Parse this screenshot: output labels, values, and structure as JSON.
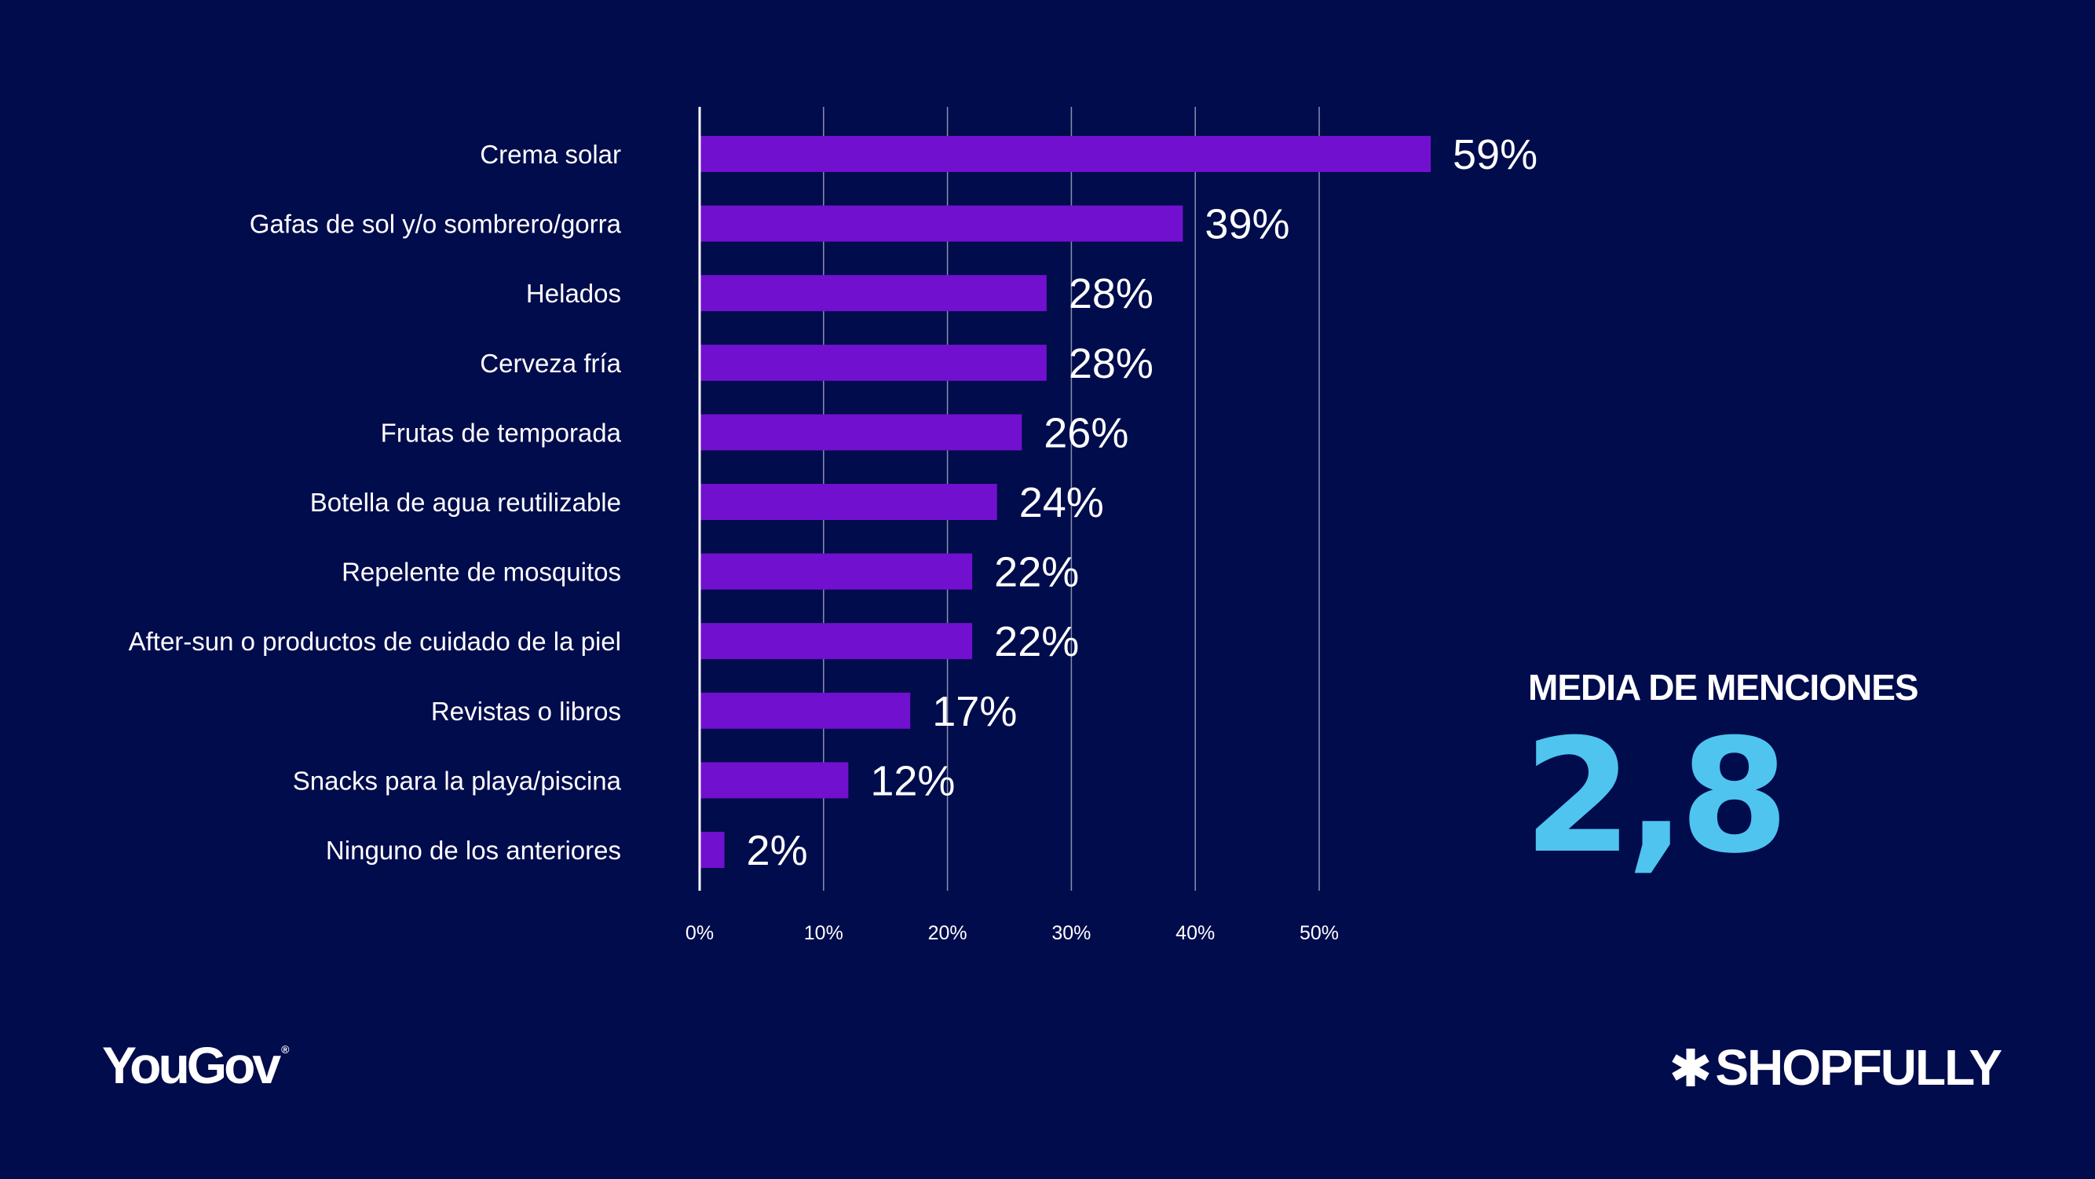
{
  "chart_data": {
    "type": "bar",
    "orientation": "horizontal",
    "categories": [
      "Crema solar",
      "Gafas de sol y/o sombrero/gorra",
      "Helados",
      "Cerveza fría",
      "Frutas de temporada",
      "Botella de agua reutilizable",
      "Repelente de mosquitos",
      "After-sun o productos de cuidado de la piel",
      "Revistas o libros",
      "Snacks para la playa/piscina",
      "Ninguno de los anteriores"
    ],
    "values": [
      59,
      39,
      28,
      28,
      26,
      24,
      22,
      22,
      17,
      12,
      2
    ],
    "value_labels": [
      "59%",
      "39%",
      "28%",
      "28%",
      "26%",
      "24%",
      "22%",
      "22%",
      "17%",
      "12%",
      "2%"
    ],
    "x_ticks": [
      0,
      10,
      20,
      30,
      40,
      50
    ],
    "x_tick_labels": [
      "0%",
      "10%",
      "20%",
      "30%",
      "40%",
      "50%"
    ],
    "xlim": [
      0,
      59
    ],
    "grid": true,
    "bar_color": "#7210cf",
    "grid_color": "#8a8fae"
  },
  "kpi": {
    "label": "MEDIA DE MENCIONES",
    "value": "2,8",
    "color": "#4fc4ee"
  },
  "logos": {
    "left": "YouGov",
    "left_mark": "®",
    "right": "SHOPFULLY",
    "right_icon": "asterisk-icon"
  },
  "colors": {
    "background": "#000c4c",
    "text": "#ffffff"
  }
}
